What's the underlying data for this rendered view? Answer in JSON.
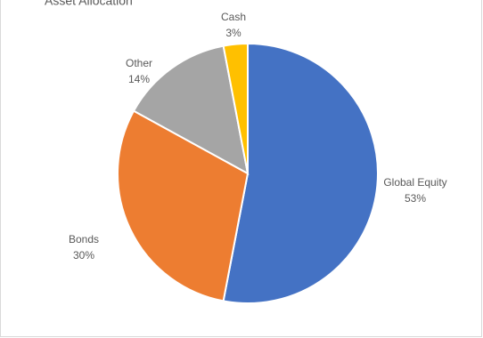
{
  "chart_data": {
    "type": "pie",
    "title": "Asset Allocation",
    "categories": [
      "Global Equity",
      "Bonds",
      "Other",
      "Cash"
    ],
    "values": [
      53,
      30,
      14,
      3
    ],
    "value_labels": [
      "53%",
      "30%",
      "14%",
      "3%"
    ],
    "colors": [
      "#4472c4",
      "#ed7d31",
      "#a5a5a5",
      "#ffc000"
    ]
  }
}
